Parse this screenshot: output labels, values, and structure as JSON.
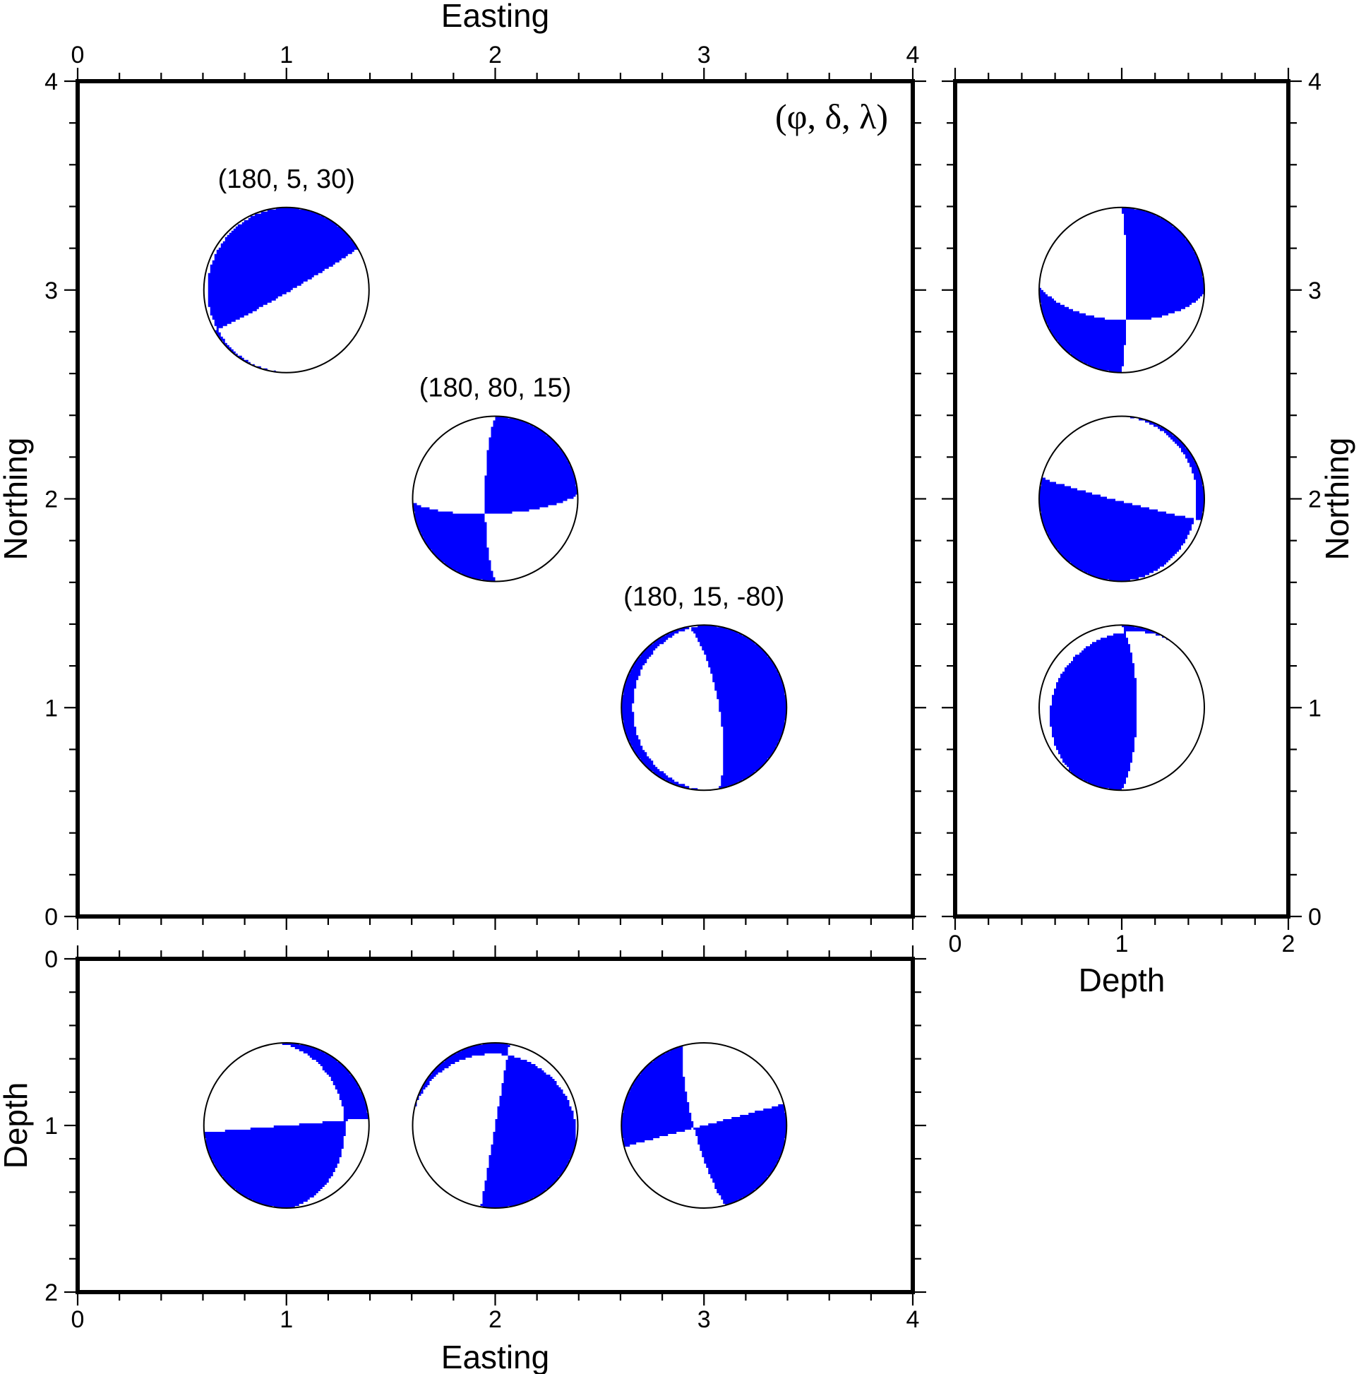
{
  "colors": {
    "compression": "#0000ff",
    "dilatation": "#ffffff",
    "outline": "#000000"
  },
  "legend": "(φ, δ, λ)",
  "panels": {
    "map": {
      "xlabel": "Easting",
      "ylabel": "Northing",
      "xticks": [
        "0",
        "1",
        "2",
        "3",
        "4"
      ],
      "yticks": [
        "0",
        "1",
        "2",
        "3",
        "4"
      ],
      "xlim": [
        0,
        4
      ],
      "ylim": [
        0,
        4
      ]
    },
    "side": {
      "xlabel": "Depth",
      "ylabel": "Northing",
      "xticks": [
        "0",
        "1",
        "2"
      ],
      "yticks": [
        "0",
        "1",
        "2",
        "3",
        "4"
      ],
      "xlim": [
        0,
        2
      ],
      "ylim": [
        0,
        4
      ]
    },
    "bottom": {
      "xlabel": "Easting",
      "ylabel": "Depth",
      "xticks": [
        "0",
        "1",
        "2",
        "3",
        "4"
      ],
      "yticks": [
        "0",
        "1",
        "2"
      ],
      "xlim": [
        0,
        4
      ],
      "ylim": [
        0,
        2
      ]
    }
  },
  "events": [
    {
      "label": "(180, 5, 30)",
      "strike": 180,
      "dip": 5,
      "rake": 30,
      "easting": 1,
      "northing": 3,
      "depth": 1
    },
    {
      "label": "(180, 80, 15)",
      "strike": 180,
      "dip": 80,
      "rake": 15,
      "easting": 2,
      "northing": 2,
      "depth": 1
    },
    {
      "label": "(180, 15, -80)",
      "strike": 180,
      "dip": 15,
      "rake": -80,
      "easting": 3,
      "northing": 1,
      "depth": 1
    }
  ]
}
